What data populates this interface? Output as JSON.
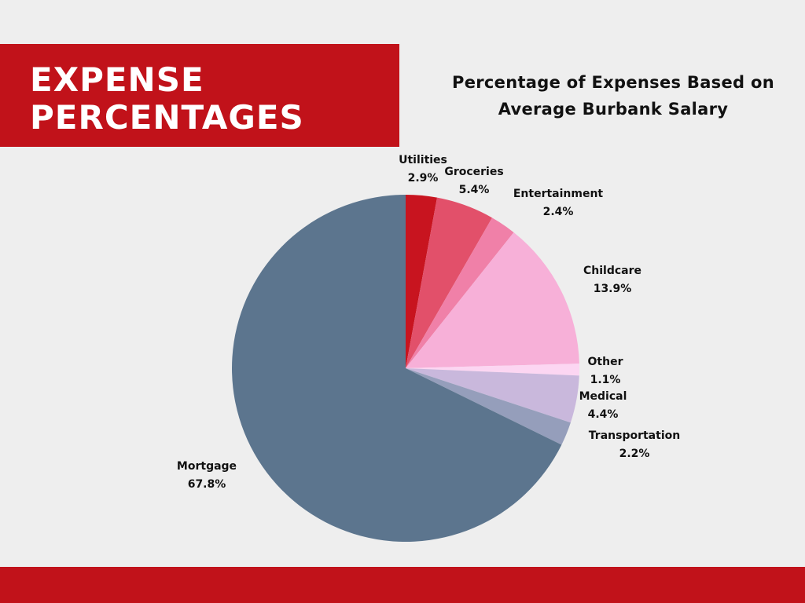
{
  "banner": {
    "title": "EXPENSE\nPERCENTAGES"
  },
  "chart_data": {
    "type": "pie",
    "title": "Percentage of Expenses Based on\nAverage Burbank Salary",
    "slices": [
      {
        "label": "Utilities",
        "value": 2.9,
        "value_label": "2.9%",
        "color": "#c8141f"
      },
      {
        "label": "Groceries",
        "value": 5.4,
        "value_label": "5.4%",
        "color": "#e2506a"
      },
      {
        "label": "Entertainment",
        "value": 2.4,
        "value_label": "2.4%",
        "color": "#f080a8"
      },
      {
        "label": "Childcare",
        "value": 13.9,
        "value_label": "13.9%",
        "color": "#f7b0d8"
      },
      {
        "label": "Other",
        "value": 1.1,
        "value_label": "1.1%",
        "color": "#fcd6f2"
      },
      {
        "label": "Medical",
        "value": 4.4,
        "value_label": "4.4%",
        "color": "#c9b8dc"
      },
      {
        "label": "Transportation",
        "value": 2.2,
        "value_label": "2.2%",
        "color": "#959ebb"
      },
      {
        "label": "Mortgage",
        "value": 67.8,
        "value_label": "67.8%",
        "color": "#5c758e"
      }
    ]
  }
}
